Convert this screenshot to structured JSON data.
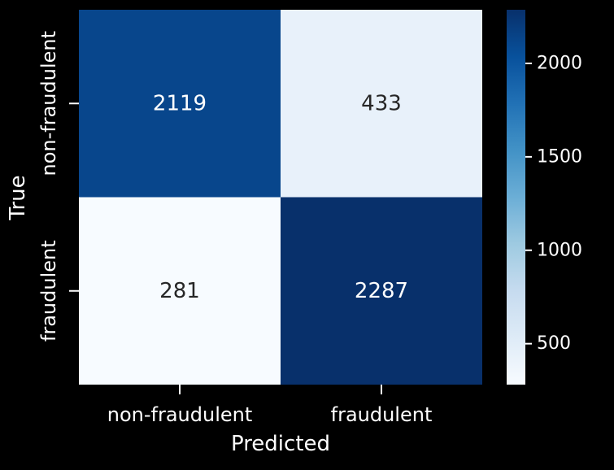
{
  "chart_data": {
    "type": "heatmap",
    "x_categories": [
      "non-fraudulent",
      "fraudulent"
    ],
    "y_categories": [
      "non-fraudulent",
      "fraudulent"
    ],
    "values": [
      [
        2119,
        433
      ],
      [
        281,
        2287
      ]
    ],
    "xlabel": "Predicted",
    "ylabel": "True",
    "colormap": "Blues",
    "colorbar": {
      "vmin": 281,
      "vmax": 2287,
      "ticks": [
        500,
        1000,
        1500,
        2000
      ],
      "tick_labels": [
        "500",
        "1000",
        "1500",
        "2000"
      ]
    },
    "colors": {
      "background": "#000000",
      "text": "#ffffff",
      "cell_text_dark": "#262626"
    }
  }
}
